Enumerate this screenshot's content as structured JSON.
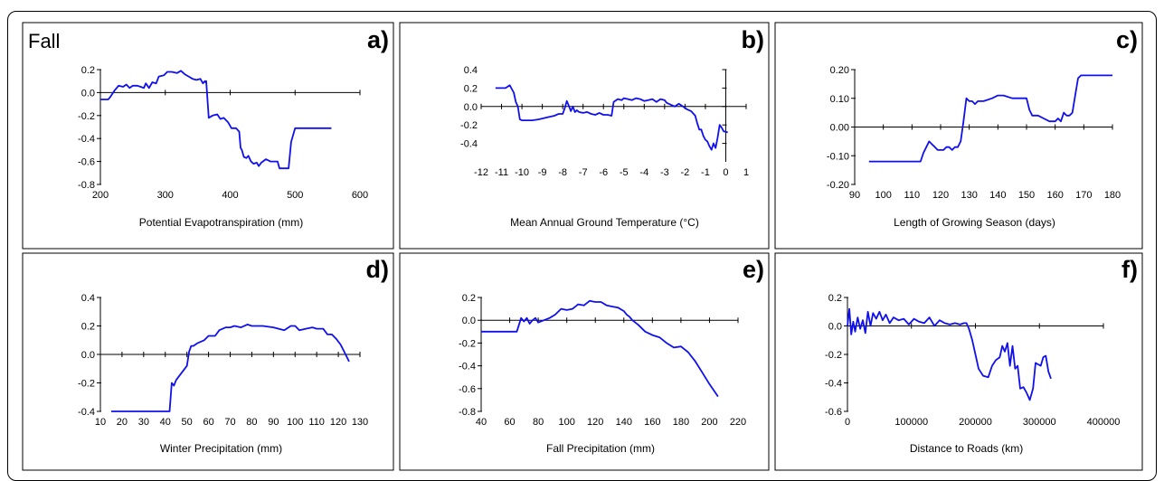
{
  "season_label": "Fall",
  "line_color": "#1010ee",
  "chart_data": [
    {
      "id": "a",
      "type": "line",
      "panel_letter": "a)",
      "xlabel": "Potential Evapotranspiration (mm)",
      "xlim": [
        200,
        600
      ],
      "ylim": [
        -0.8,
        0.2
      ],
      "y_axis_at_x": 200,
      "xticks": [
        200,
        300,
        400,
        500,
        600
      ],
      "xtick_labels": [
        "200",
        "300",
        "400",
        "500",
        "600"
      ],
      "yticks": [
        -0.8,
        -0.6,
        -0.4,
        -0.2,
        0.0,
        0.2
      ],
      "ytick_labels": [
        "-0.8",
        "-0.6",
        "-0.4",
        "-0.2",
        "0.0",
        "0.2"
      ],
      "x": [
        200,
        212,
        215,
        222,
        228,
        235,
        240,
        245,
        250,
        257,
        262,
        267,
        270,
        275,
        280,
        286,
        290,
        298,
        303,
        310,
        318,
        324,
        330,
        336,
        342,
        348,
        354,
        358,
        361,
        362,
        363,
        367,
        373,
        380,
        385,
        390,
        397,
        402,
        409,
        414,
        416,
        418,
        421,
        425,
        428,
        432,
        436,
        441,
        444,
        448,
        455,
        462,
        468,
        473,
        476,
        490,
        494,
        500,
        505,
        510,
        518,
        530,
        545,
        556
      ],
      "y": [
        -0.06,
        -0.06,
        -0.04,
        0.02,
        0.06,
        0.05,
        0.07,
        0.04,
        0.06,
        0.06,
        0.05,
        0.04,
        0.08,
        0.04,
        0.09,
        0.08,
        0.14,
        0.15,
        0.18,
        0.18,
        0.17,
        0.19,
        0.16,
        0.14,
        0.12,
        0.11,
        0.12,
        0.08,
        0.1,
        0.09,
        0.1,
        -0.22,
        -0.2,
        -0.19,
        -0.23,
        -0.22,
        -0.26,
        -0.31,
        -0.31,
        -0.34,
        -0.48,
        -0.5,
        -0.56,
        -0.57,
        -0.55,
        -0.6,
        -0.62,
        -0.61,
        -0.64,
        -0.61,
        -0.58,
        -0.6,
        -0.6,
        -0.6,
        -0.66,
        -0.66,
        -0.43,
        -0.31,
        -0.31,
        -0.31,
        -0.31,
        -0.31,
        -0.31,
        -0.31
      ]
    },
    {
      "id": "b",
      "type": "line",
      "panel_letter": "b)",
      "xlabel": "Mean Annual Ground Temperature (°C)",
      "xlim": [
        -12,
        1
      ],
      "ylim": [
        -0.6,
        0.4
      ],
      "y_axis_at_x": 0,
      "xticks": [
        -12,
        -11,
        -10,
        -9,
        -8,
        -7,
        -6,
        -5,
        -4,
        -3,
        -2,
        -1,
        0,
        1
      ],
      "xtick_labels": [
        "-12",
        "-11",
        "-10",
        "-9",
        "-8",
        "-7",
        "-6",
        "-5",
        "-4",
        "-3",
        "-2",
        "-1",
        "0",
        "1"
      ],
      "yticks": [
        -0.4,
        -0.2,
        0.0,
        0.2,
        0.4
      ],
      "ytick_labels": [
        "-0.4",
        "-0.2",
        "0.0",
        "0.2",
        "0.4"
      ],
      "x": [
        -11.3,
        -10.8,
        -10.6,
        -10.4,
        -10.3,
        -10.2,
        -10.1,
        -10.0,
        -9.8,
        -9.5,
        -9.2,
        -9.0,
        -8.8,
        -8.6,
        -8.4,
        -8.2,
        -8.0,
        -7.9,
        -7.8,
        -7.7,
        -7.6,
        -7.5,
        -7.4,
        -7.3,
        -7.2,
        -7.0,
        -6.8,
        -6.6,
        -6.4,
        -6.2,
        -6.0,
        -5.8,
        -5.6,
        -5.5,
        -5.3,
        -5.1,
        -5.0,
        -4.8,
        -4.6,
        -4.4,
        -4.2,
        -4.0,
        -3.8,
        -3.6,
        -3.4,
        -3.2,
        -3.0,
        -2.9,
        -2.7,
        -2.5,
        -2.3,
        -2.1,
        -1.9,
        -1.7,
        -1.5,
        -1.4,
        -1.3,
        -1.2,
        -1.1,
        -1.0,
        -0.9,
        -0.8,
        -0.7,
        -0.6,
        -0.5,
        -0.4,
        -0.3,
        -0.2,
        -0.1,
        0.1
      ],
      "y": [
        0.2,
        0.2,
        0.23,
        0.15,
        0.05,
        0.0,
        -0.14,
        -0.15,
        -0.15,
        -0.15,
        -0.14,
        -0.13,
        -0.12,
        -0.11,
        -0.1,
        -0.08,
        -0.08,
        -0.02,
        0.06,
        0.01,
        -0.05,
        0.0,
        -0.06,
        -0.04,
        -0.06,
        -0.07,
        -0.06,
        -0.08,
        -0.09,
        -0.07,
        -0.09,
        -0.09,
        -0.1,
        0.05,
        0.08,
        0.07,
        0.09,
        0.08,
        0.07,
        0.09,
        0.08,
        0.06,
        0.07,
        0.08,
        0.05,
        0.08,
        0.07,
        0.04,
        0.02,
        0.0,
        0.03,
        0.0,
        -0.03,
        -0.05,
        -0.1,
        -0.18,
        -0.25,
        -0.25,
        -0.32,
        -0.36,
        -0.38,
        -0.43,
        -0.47,
        -0.4,
        -0.45,
        -0.34,
        -0.2,
        -0.23,
        -0.27,
        -0.28
      ]
    },
    {
      "id": "c",
      "type": "line",
      "panel_letter": "c)",
      "xlabel": "Length of Growing Season (days)",
      "xlim": [
        90,
        180
      ],
      "ylim": [
        -0.2,
        0.2
      ],
      "y_axis_at_x": 90,
      "xticks": [
        90,
        100,
        110,
        120,
        130,
        140,
        150,
        160,
        170,
        180
      ],
      "xtick_labels": [
        "90",
        "100",
        "110",
        "120",
        "130",
        "140",
        "150",
        "160",
        "170",
        "180"
      ],
      "yticks": [
        -0.2,
        -0.1,
        0.0,
        0.1,
        0.2
      ],
      "ytick_labels": [
        "-0.20",
        "-0.10",
        "0.00",
        "0.10",
        "0.20"
      ],
      "x": [
        95,
        100,
        105,
        110,
        113,
        114,
        115,
        116,
        117,
        118,
        119,
        120,
        121,
        122,
        123,
        124,
        125,
        126,
        127,
        128,
        129,
        130,
        131,
        132,
        133,
        135,
        138,
        140,
        142,
        145,
        148,
        150,
        151,
        152,
        154,
        156,
        158,
        160,
        161,
        162,
        163,
        164,
        165,
        166,
        167,
        168,
        169,
        170,
        172,
        175,
        180
      ],
      "y": [
        -0.12,
        -0.12,
        -0.12,
        -0.12,
        -0.12,
        -0.09,
        -0.07,
        -0.05,
        -0.06,
        -0.07,
        -0.08,
        -0.08,
        -0.08,
        -0.07,
        -0.07,
        -0.08,
        -0.07,
        -0.07,
        -0.05,
        0.02,
        0.1,
        0.09,
        0.09,
        0.08,
        0.09,
        0.09,
        0.1,
        0.11,
        0.11,
        0.1,
        0.1,
        0.1,
        0.06,
        0.04,
        0.04,
        0.03,
        0.02,
        0.02,
        0.03,
        0.02,
        0.05,
        0.04,
        0.04,
        0.05,
        0.11,
        0.17,
        0.18,
        0.18,
        0.18,
        0.18,
        0.18
      ]
    },
    {
      "id": "d",
      "type": "line",
      "panel_letter": "d)",
      "xlabel": "Winter Precipitation (mm)",
      "xlim": [
        10,
        130
      ],
      "ylim": [
        -0.4,
        0.4
      ],
      "y_axis_at_x": 10,
      "xticks": [
        10,
        20,
        30,
        40,
        50,
        60,
        70,
        80,
        90,
        100,
        110,
        120,
        130
      ],
      "xtick_labels": [
        "10",
        "20",
        "30",
        "40",
        "50",
        "60",
        "70",
        "80",
        "90",
        "100",
        "110",
        "120",
        "130"
      ],
      "yticks": [
        -0.4,
        -0.2,
        0.0,
        0.2,
        0.4
      ],
      "ytick_labels": [
        "-0.4",
        "-0.2",
        "0.0",
        "0.2",
        "0.4"
      ],
      "x": [
        15,
        20,
        30,
        40,
        42,
        43,
        44,
        45,
        46,
        48,
        50,
        51,
        52,
        53,
        55,
        58,
        60,
        63,
        65,
        68,
        70,
        72,
        75,
        78,
        80,
        85,
        90,
        95,
        98,
        100,
        102,
        105,
        108,
        110,
        113,
        115,
        117,
        119,
        121,
        123,
        125
      ],
      "y": [
        -0.4,
        -0.4,
        -0.4,
        -0.4,
        -0.4,
        -0.2,
        -0.22,
        -0.18,
        -0.16,
        -0.12,
        -0.08,
        0.02,
        0.06,
        0.06,
        0.08,
        0.1,
        0.13,
        0.13,
        0.17,
        0.19,
        0.19,
        0.2,
        0.19,
        0.21,
        0.2,
        0.2,
        0.19,
        0.17,
        0.2,
        0.2,
        0.17,
        0.18,
        0.19,
        0.18,
        0.18,
        0.14,
        0.14,
        0.11,
        0.07,
        0.01,
        -0.05
      ]
    },
    {
      "id": "e",
      "type": "line",
      "panel_letter": "e)",
      "xlabel": "Fall Precipitation (mm)",
      "xlim": [
        40,
        220
      ],
      "ylim": [
        -0.8,
        0.2
      ],
      "y_axis_at_x": 40,
      "xticks": [
        40,
        60,
        80,
        100,
        120,
        140,
        160,
        180,
        200,
        220
      ],
      "xtick_labels": [
        "40",
        "60",
        "80",
        "100",
        "120",
        "140",
        "160",
        "180",
        "200",
        "220"
      ],
      "yticks": [
        -0.8,
        -0.6,
        -0.4,
        -0.2,
        0.0,
        0.2
      ],
      "ytick_labels": [
        "-0.8",
        "-0.6",
        "-0.4",
        "-0.2",
        "0.0",
        "0.2"
      ],
      "x": [
        40,
        50,
        60,
        65,
        66,
        68,
        70,
        72,
        74,
        76,
        78,
        80,
        84,
        88,
        92,
        96,
        100,
        104,
        108,
        112,
        116,
        120,
        124,
        128,
        132,
        136,
        140,
        142,
        144,
        146,
        150,
        155,
        160,
        165,
        170,
        175,
        180,
        185,
        190,
        195,
        200,
        206
      ],
      "y": [
        -0.1,
        -0.1,
        -0.1,
        -0.1,
        -0.06,
        0.02,
        -0.01,
        0.02,
        -0.03,
        0.0,
        0.02,
        -0.02,
        0.0,
        0.02,
        0.05,
        0.1,
        0.09,
        0.1,
        0.14,
        0.13,
        0.17,
        0.16,
        0.16,
        0.13,
        0.12,
        0.11,
        0.08,
        0.05,
        0.03,
        0.0,
        -0.04,
        -0.1,
        -0.13,
        -0.15,
        -0.2,
        -0.24,
        -0.23,
        -0.28,
        -0.36,
        -0.46,
        -0.56,
        -0.67
      ]
    },
    {
      "id": "f",
      "type": "line",
      "panel_letter": "f)",
      "xlabel": "Distance to Roads (km)",
      "xlim": [
        0,
        400000
      ],
      "ylim": [
        -0.6,
        0.2
      ],
      "y_axis_at_x": 0,
      "xticks": [
        0,
        100000,
        200000,
        300000,
        400000
      ],
      "xtick_labels": [
        "0",
        "100000",
        "200000",
        "300000",
        "400000"
      ],
      "yticks": [
        -0.6,
        -0.4,
        -0.2,
        0.0,
        0.2
      ],
      "ytick_labels": [
        "-0.6",
        "-0.4",
        "-0.2",
        "0.0",
        "0.2"
      ],
      "x": [
        0,
        3000,
        6000,
        9000,
        12000,
        16000,
        20000,
        24000,
        28000,
        32000,
        36000,
        40000,
        45000,
        50000,
        55000,
        60000,
        66000,
        72000,
        80000,
        88000,
        96000,
        104000,
        112000,
        120000,
        128000,
        136000,
        144000,
        152000,
        160000,
        168000,
        176000,
        182000,
        186000,
        190000,
        195000,
        200000,
        205000,
        212000,
        220000,
        226000,
        232000,
        238000,
        242000,
        246000,
        250000,
        254000,
        258000,
        262000,
        266000,
        270000,
        275000,
        280000,
        285000,
        290000,
        294000,
        298000,
        302000,
        306000,
        310000,
        314000,
        318000
      ],
      "y": [
        0.0,
        0.12,
        -0.06,
        0.03,
        -0.04,
        0.06,
        -0.02,
        0.04,
        -0.05,
        0.1,
        0.0,
        0.09,
        0.05,
        0.1,
        0.04,
        0.08,
        0.02,
        0.06,
        0.04,
        0.05,
        0.01,
        0.05,
        0.03,
        0.02,
        0.06,
        0.0,
        0.04,
        0.02,
        0.01,
        0.02,
        0.01,
        0.02,
        0.02,
        -0.02,
        -0.1,
        -0.2,
        -0.3,
        -0.35,
        -0.36,
        -0.28,
        -0.24,
        -0.22,
        -0.14,
        -0.18,
        -0.12,
        -0.28,
        -0.14,
        -0.3,
        -0.28,
        -0.44,
        -0.43,
        -0.47,
        -0.52,
        -0.44,
        -0.26,
        -0.27,
        -0.28,
        -0.22,
        -0.21,
        -0.32,
        -0.37
      ]
    }
  ]
}
